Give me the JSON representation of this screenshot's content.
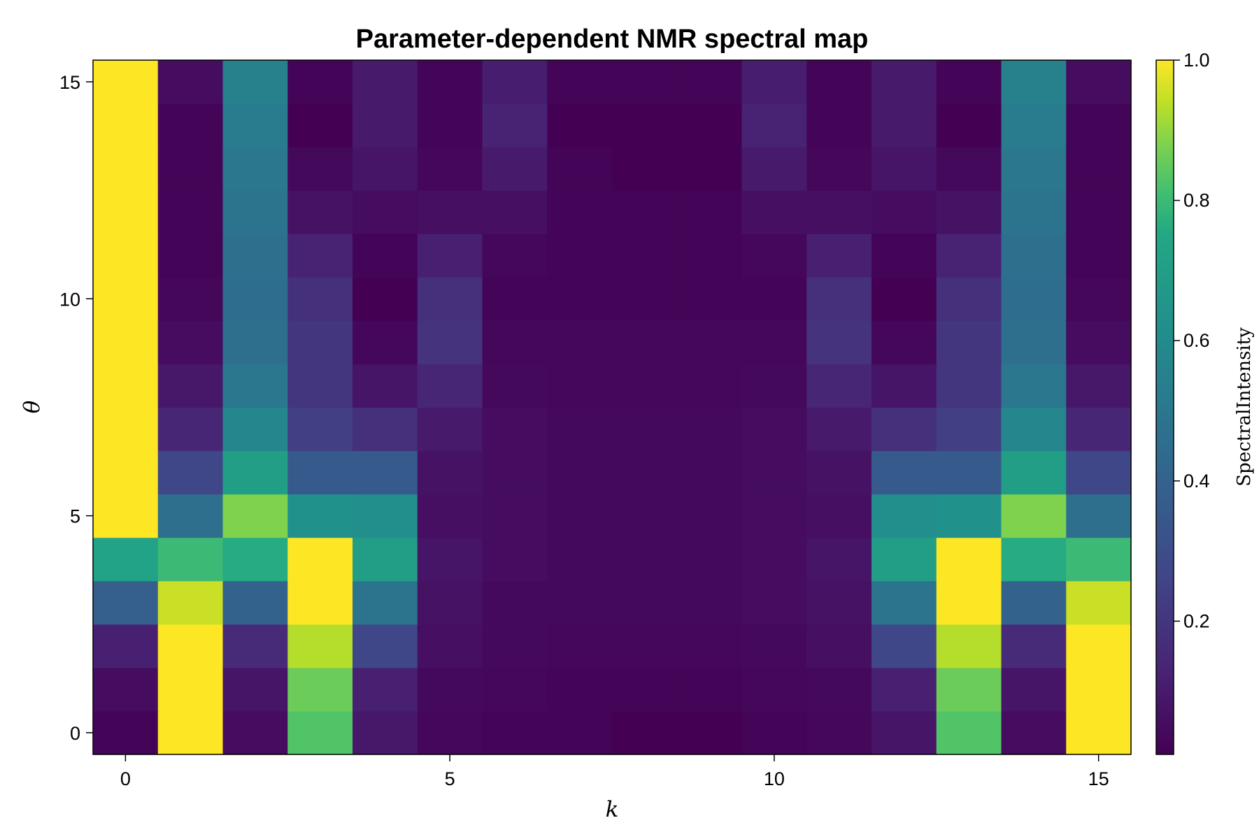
{
  "chart_data": {
    "type": "heatmap",
    "title": "Parameter-dependent NMR spectral map",
    "xlabel": "k",
    "ylabel": "θ",
    "colorbar_label": "SpectralIntensity",
    "colormap": "viridis",
    "x": [
      0,
      1,
      2,
      3,
      4,
      5,
      6,
      7,
      8,
      9,
      10,
      11,
      12,
      13,
      14,
      15
    ],
    "y": [
      0,
      1,
      2,
      3,
      4,
      5,
      6,
      7,
      8,
      9,
      10,
      11,
      12,
      13,
      14,
      15
    ],
    "xlim": [
      -0.5,
      15.5
    ],
    "ylim": [
      -0.5,
      15.5
    ],
    "x_ticks": [
      0,
      5,
      10,
      15
    ],
    "y_ticks": [
      0,
      5,
      10,
      15
    ],
    "colorbar_range": [
      0.01,
      1.0
    ],
    "colorbar_ticks": [
      0.2,
      0.4,
      0.6,
      0.8,
      1.0
    ],
    "colorbar_tick_labels": [
      "0.2",
      "0.4",
      "0.6",
      "0.8",
      "1.0"
    ],
    "values": [
      [
        0.02,
        1.0,
        0.05,
        0.83,
        0.09,
        0.03,
        0.02,
        0.02,
        0.01,
        0.01,
        0.02,
        0.03,
        0.08,
        0.83,
        0.05,
        1.0
      ],
      [
        0.05,
        1.0,
        0.08,
        0.86,
        0.12,
        0.04,
        0.03,
        0.02,
        0.02,
        0.02,
        0.03,
        0.04,
        0.12,
        0.86,
        0.08,
        1.0
      ],
      [
        0.12,
        1.0,
        0.16,
        0.93,
        0.27,
        0.06,
        0.04,
        0.03,
        0.03,
        0.03,
        0.04,
        0.06,
        0.27,
        0.93,
        0.16,
        1.0
      ],
      [
        0.38,
        0.95,
        0.4,
        1.0,
        0.48,
        0.07,
        0.04,
        0.04,
        0.04,
        0.04,
        0.05,
        0.07,
        0.48,
        1.0,
        0.4,
        0.95
      ],
      [
        0.72,
        0.8,
        0.76,
        1.0,
        0.7,
        0.08,
        0.05,
        0.04,
        0.04,
        0.04,
        0.05,
        0.08,
        0.7,
        1.0,
        0.76,
        0.8
      ],
      [
        1.0,
        0.46,
        0.88,
        0.63,
        0.62,
        0.06,
        0.05,
        0.04,
        0.04,
        0.04,
        0.05,
        0.06,
        0.62,
        0.63,
        0.88,
        0.46
      ],
      [
        1.0,
        0.27,
        0.7,
        0.36,
        0.36,
        0.07,
        0.05,
        0.04,
        0.04,
        0.04,
        0.05,
        0.07,
        0.36,
        0.36,
        0.7,
        0.27
      ],
      [
        1.0,
        0.14,
        0.58,
        0.24,
        0.18,
        0.1,
        0.05,
        0.04,
        0.04,
        0.04,
        0.05,
        0.1,
        0.18,
        0.24,
        0.58,
        0.14
      ],
      [
        1.0,
        0.09,
        0.5,
        0.2,
        0.08,
        0.14,
        0.04,
        0.03,
        0.03,
        0.03,
        0.04,
        0.14,
        0.08,
        0.2,
        0.5,
        0.09
      ],
      [
        1.0,
        0.05,
        0.46,
        0.2,
        0.03,
        0.19,
        0.03,
        0.03,
        0.03,
        0.03,
        0.03,
        0.19,
        0.03,
        0.2,
        0.46,
        0.05
      ],
      [
        1.0,
        0.03,
        0.45,
        0.18,
        0.01,
        0.18,
        0.02,
        0.02,
        0.02,
        0.02,
        0.02,
        0.18,
        0.01,
        0.18,
        0.45,
        0.03
      ],
      [
        1.0,
        0.02,
        0.46,
        0.13,
        0.02,
        0.12,
        0.03,
        0.02,
        0.02,
        0.02,
        0.03,
        0.12,
        0.02,
        0.13,
        0.46,
        0.02
      ],
      [
        1.0,
        0.02,
        0.48,
        0.07,
        0.05,
        0.06,
        0.06,
        0.02,
        0.02,
        0.02,
        0.06,
        0.06,
        0.05,
        0.07,
        0.48,
        0.02
      ],
      [
        1.0,
        0.02,
        0.5,
        0.04,
        0.08,
        0.03,
        0.1,
        0.02,
        0.01,
        0.01,
        0.1,
        0.03,
        0.08,
        0.04,
        0.5,
        0.02
      ],
      [
        1.0,
        0.02,
        0.52,
        0.01,
        0.1,
        0.02,
        0.13,
        0.01,
        0.01,
        0.01,
        0.13,
        0.02,
        0.1,
        0.01,
        0.52,
        0.02
      ],
      [
        1.0,
        0.05,
        0.55,
        0.02,
        0.1,
        0.02,
        0.11,
        0.02,
        0.02,
        0.02,
        0.11,
        0.02,
        0.1,
        0.02,
        0.55,
        0.05
      ]
    ]
  }
}
